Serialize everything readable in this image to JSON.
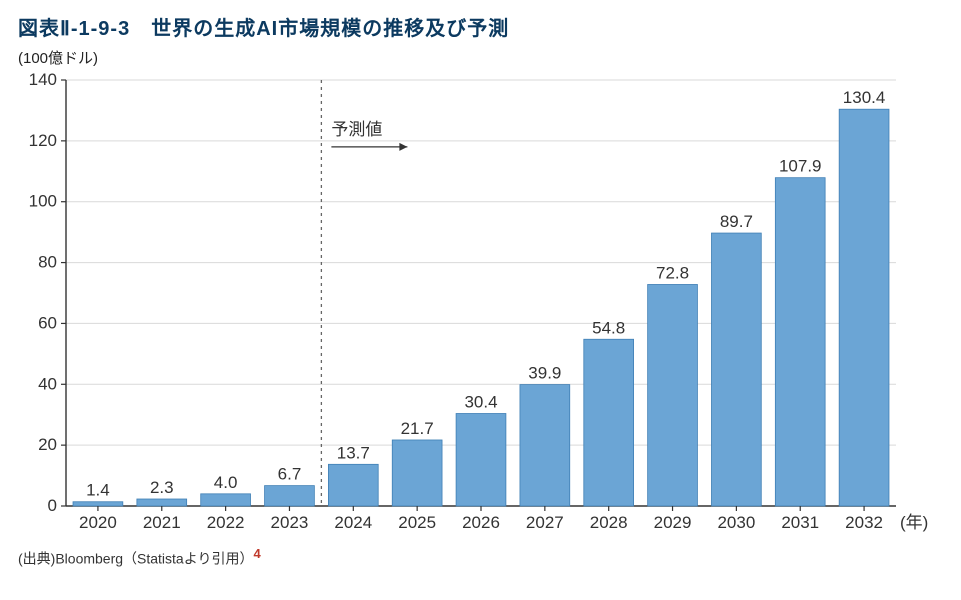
{
  "title": "図表Ⅱ-1-9-3　世界の生成AI市場規模の推移及び予測",
  "yunit": "(100億ドル)",
  "xunit": "(年)",
  "source_prefix": "(出典)",
  "source_text": "Bloomberg（Statistaより引用）",
  "source_note_ref": "4",
  "forecast_label": "予測値",
  "chart": {
    "type": "bar",
    "categories": [
      "2020",
      "2021",
      "2022",
      "2023",
      "2024",
      "2025",
      "2026",
      "2027",
      "2028",
      "2029",
      "2030",
      "2031",
      "2032"
    ],
    "values": [
      1.4,
      2.3,
      4.0,
      6.7,
      13.7,
      21.7,
      30.4,
      39.9,
      54.8,
      72.8,
      89.7,
      107.9,
      130.4
    ],
    "value_labels": [
      "1.4",
      "2.3",
      "4.0",
      "6.7",
      "13.7",
      "21.7",
      "30.4",
      "39.9",
      "54.8",
      "72.8",
      "89.7",
      "107.9",
      "130.4"
    ],
    "bar_color": "#6ba5d5",
    "bar_border_color": "#3f7fb5",
    "axis_color": "#333333",
    "grid_color": "#d9d9d9",
    "background_color": "#ffffff",
    "label_color": "#333333",
    "ylim": [
      0,
      140
    ],
    "ytick_step": 20,
    "bar_width_ratio": 0.78,
    "value_label_fontsize": 17,
    "tick_label_fontsize": 17,
    "forecast_divider_after_index": 3,
    "forecast_label_fontsize": 17,
    "divider_dash": "3,4",
    "title_color": "#0c3a60",
    "title_fontsize": 20
  }
}
